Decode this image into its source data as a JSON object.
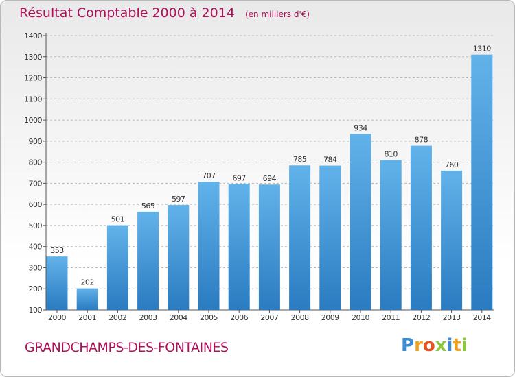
{
  "title": "Résultat Comptable 2000 à 2014",
  "subtitle": "(en milliers d'€)",
  "commune": "GRANDCHAMPS-DES-FONTAINES",
  "logo": {
    "letters": [
      "P",
      "r",
      "o",
      "x",
      "i",
      "t",
      "i"
    ],
    "colors": [
      "#3a8dd6",
      "#f0a020",
      "#e8501e",
      "#8dc63f",
      "#3a8dd6",
      "#f0a020",
      "#8dc63f"
    ]
  },
  "colors": {
    "bar_light": "#62b2ea",
    "bar_dark": "#2a7bc0",
    "title": "#b0105a"
  },
  "chart_data": {
    "type": "bar",
    "categories": [
      "2000",
      "2001",
      "2002",
      "2003",
      "2004",
      "2005",
      "2006",
      "2007",
      "2008",
      "2009",
      "2010",
      "2011",
      "2012",
      "2013",
      "2014"
    ],
    "values": [
      353,
      202,
      501,
      565,
      597,
      707,
      697,
      694,
      785,
      784,
      934,
      810,
      878,
      760,
      1310
    ],
    "title": "Résultat Comptable 2000 à 2014",
    "subtitle": "(en milliers d'€)",
    "ylim": [
      100,
      1400
    ],
    "yticks": [
      100,
      200,
      300,
      400,
      500,
      600,
      700,
      800,
      900,
      1000,
      1100,
      1200,
      1300,
      1400
    ],
    "grid": true
  }
}
